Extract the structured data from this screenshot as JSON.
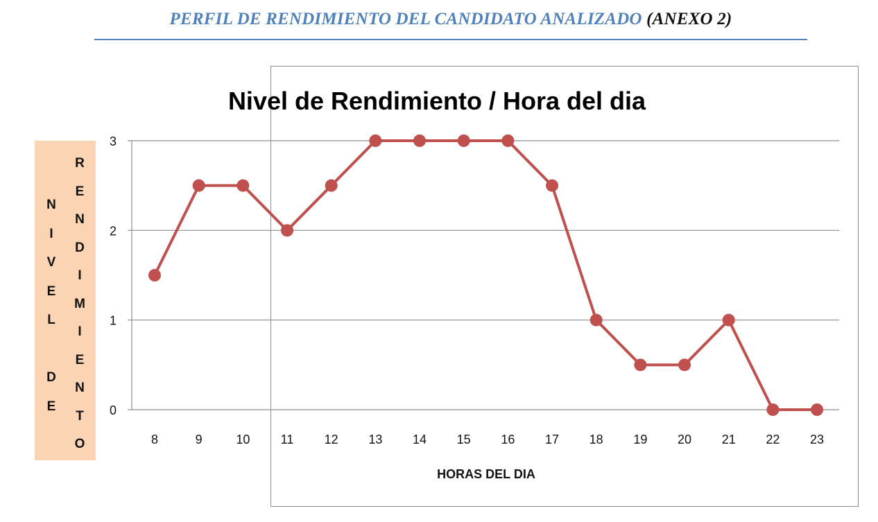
{
  "document": {
    "title_main": "PERFIL DE RENDIMIENTO DEL CANDIDATO ANALIZADO",
    "title_annex": "(ANEXO 2)",
    "accent_color": "#4f81bd"
  },
  "chart_data": {
    "type": "line",
    "title": "Nivel de Rendimiento / Hora del dia",
    "xlabel": "HORAS DEL DIA",
    "ylabel_lines": [
      "NIVEL DE",
      "RENDIMIENTO"
    ],
    "ylabel_box_color": "#fbd4b4",
    "x": [
      8,
      9,
      10,
      11,
      12,
      13,
      14,
      15,
      16,
      17,
      18,
      19,
      20,
      21,
      22,
      23
    ],
    "series": [
      {
        "values": [
          1.5,
          2.5,
          2.5,
          2,
          2.5,
          3,
          3,
          3,
          3,
          2.5,
          1,
          0.5,
          0.5,
          1,
          0,
          0
        ],
        "color": "#c0504d"
      }
    ],
    "yticks": [
      0,
      1,
      2,
      3
    ],
    "ylim": [
      0,
      3
    ],
    "grid": true,
    "legend": "none"
  }
}
